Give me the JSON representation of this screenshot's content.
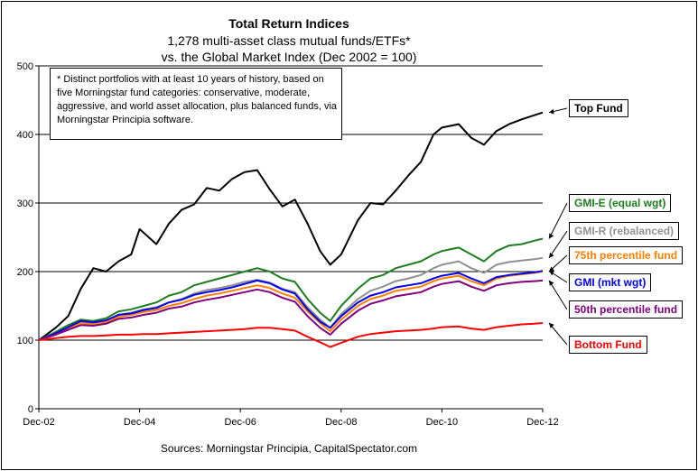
{
  "chart_data": {
    "type": "line",
    "title": "Total Return Indices",
    "subtitle": [
      "1,278 multi-asset class mutual funds/ETFs*",
      "vs. the Global Market Index (Dec 2002 = 100)"
    ],
    "note": "* Distinct portfolios with at least 10 years of history, based on five Morningstar fund categories: conservative, moderate, aggressive, and world asset allocation, plus balanced funds, via Morningstar Principia software.",
    "source": "Sources: Morningstar Principia, CapitalSpectator.com",
    "xlabel": "",
    "ylabel": "",
    "ylim": [
      0,
      500
    ],
    "xlim": [
      2002.917,
      2012.917
    ],
    "y_ticks": [
      0,
      100,
      200,
      300,
      400,
      500
    ],
    "x_ticks": [
      {
        "x": 2002.917,
        "label": "Dec-02"
      },
      {
        "x": 2004.917,
        "label": "Dec-04"
      },
      {
        "x": 2006.917,
        "label": "Dec-06"
      },
      {
        "x": 2008.917,
        "label": "Dec-08"
      },
      {
        "x": 2010.917,
        "label": "Dec-10"
      },
      {
        "x": 2012.917,
        "label": "Dec-12"
      }
    ],
    "grid": "horizontal",
    "legend_placement": "right",
    "series": [
      {
        "name": "Top Fund",
        "color": "#000000",
        "label_color": "#000000",
        "points": [
          [
            2002.917,
            100
          ],
          [
            2003.25,
            118
          ],
          [
            2003.5,
            135
          ],
          [
            2003.75,
            175
          ],
          [
            2004.0,
            205
          ],
          [
            2004.25,
            200
          ],
          [
            2004.5,
            215
          ],
          [
            2004.75,
            225
          ],
          [
            2004.917,
            262
          ],
          [
            2005.25,
            240
          ],
          [
            2005.5,
            270
          ],
          [
            2005.75,
            290
          ],
          [
            2006.0,
            298
          ],
          [
            2006.25,
            322
          ],
          [
            2006.5,
            318
          ],
          [
            2006.75,
            335
          ],
          [
            2007.0,
            345
          ],
          [
            2007.25,
            348
          ],
          [
            2007.5,
            320
          ],
          [
            2007.75,
            295
          ],
          [
            2008.0,
            305
          ],
          [
            2008.25,
            270
          ],
          [
            2008.5,
            230
          ],
          [
            2008.7,
            210
          ],
          [
            2008.917,
            225
          ],
          [
            2009.25,
            275
          ],
          [
            2009.5,
            300
          ],
          [
            2009.75,
            298
          ],
          [
            2010.0,
            318
          ],
          [
            2010.25,
            340
          ],
          [
            2010.5,
            360
          ],
          [
            2010.75,
            400
          ],
          [
            2010.917,
            410
          ],
          [
            2011.25,
            415
          ],
          [
            2011.5,
            395
          ],
          [
            2011.75,
            385
          ],
          [
            2012.0,
            405
          ],
          [
            2012.25,
            415
          ],
          [
            2012.5,
            422
          ],
          [
            2012.75,
            428
          ],
          [
            2012.917,
            432
          ]
        ]
      },
      {
        "name": "GMI-E (equal wgt)",
        "color": "#1e7d1e",
        "label_color": "#1e7d1e",
        "points": [
          [
            2002.917,
            100
          ],
          [
            2003.25,
            112
          ],
          [
            2003.5,
            122
          ],
          [
            2003.75,
            130
          ],
          [
            2004.0,
            128
          ],
          [
            2004.25,
            132
          ],
          [
            2004.5,
            142
          ],
          [
            2004.75,
            145
          ],
          [
            2005.0,
            150
          ],
          [
            2005.25,
            155
          ],
          [
            2005.5,
            165
          ],
          [
            2005.75,
            170
          ],
          [
            2006.0,
            180
          ],
          [
            2006.25,
            185
          ],
          [
            2006.5,
            190
          ],
          [
            2006.75,
            195
          ],
          [
            2007.0,
            200
          ],
          [
            2007.25,
            205
          ],
          [
            2007.5,
            200
          ],
          [
            2007.75,
            190
          ],
          [
            2008.0,
            185
          ],
          [
            2008.25,
            160
          ],
          [
            2008.5,
            140
          ],
          [
            2008.7,
            128
          ],
          [
            2008.917,
            150
          ],
          [
            2009.25,
            175
          ],
          [
            2009.5,
            190
          ],
          [
            2009.75,
            195
          ],
          [
            2010.0,
            205
          ],
          [
            2010.25,
            210
          ],
          [
            2010.5,
            215
          ],
          [
            2010.75,
            225
          ],
          [
            2010.917,
            230
          ],
          [
            2011.25,
            235
          ],
          [
            2011.5,
            225
          ],
          [
            2011.75,
            215
          ],
          [
            2012.0,
            230
          ],
          [
            2012.25,
            238
          ],
          [
            2012.5,
            240
          ],
          [
            2012.75,
            245
          ],
          [
            2012.917,
            248
          ]
        ]
      },
      {
        "name": "GMI-R (rebalanced)",
        "color": "#909090",
        "label_color": "#909090",
        "points": [
          [
            2002.917,
            100
          ],
          [
            2003.25,
            110
          ],
          [
            2003.5,
            118
          ],
          [
            2003.75,
            127
          ],
          [
            2004.0,
            125
          ],
          [
            2004.25,
            128
          ],
          [
            2004.5,
            137
          ],
          [
            2004.75,
            140
          ],
          [
            2005.0,
            145
          ],
          [
            2005.25,
            148
          ],
          [
            2005.5,
            155
          ],
          [
            2005.75,
            160
          ],
          [
            2006.0,
            168
          ],
          [
            2006.25,
            173
          ],
          [
            2006.5,
            176
          ],
          [
            2006.75,
            180
          ],
          [
            2007.0,
            185
          ],
          [
            2007.25,
            188
          ],
          [
            2007.5,
            184
          ],
          [
            2007.75,
            175
          ],
          [
            2008.0,
            170
          ],
          [
            2008.25,
            148
          ],
          [
            2008.5,
            130
          ],
          [
            2008.7,
            118
          ],
          [
            2008.917,
            138
          ],
          [
            2009.25,
            160
          ],
          [
            2009.5,
            172
          ],
          [
            2009.75,
            178
          ],
          [
            2010.0,
            186
          ],
          [
            2010.25,
            190
          ],
          [
            2010.5,
            195
          ],
          [
            2010.75,
            205
          ],
          [
            2010.917,
            210
          ],
          [
            2011.25,
            215
          ],
          [
            2011.5,
            205
          ],
          [
            2011.75,
            198
          ],
          [
            2012.0,
            210
          ],
          [
            2012.25,
            214
          ],
          [
            2012.5,
            216
          ],
          [
            2012.75,
            218
          ],
          [
            2012.917,
            220
          ]
        ]
      },
      {
        "name": "75th percentile fund",
        "color": "#ff7f00",
        "label_color": "#ff7f00",
        "points": [
          [
            2002.917,
            100
          ],
          [
            2003.25,
            109
          ],
          [
            2003.5,
            117
          ],
          [
            2003.75,
            125
          ],
          [
            2004.0,
            123
          ],
          [
            2004.25,
            126
          ],
          [
            2004.5,
            134
          ],
          [
            2004.75,
            137
          ],
          [
            2005.0,
            141
          ],
          [
            2005.25,
            144
          ],
          [
            2005.5,
            150
          ],
          [
            2005.75,
            154
          ],
          [
            2006.0,
            160
          ],
          [
            2006.25,
            165
          ],
          [
            2006.5,
            168
          ],
          [
            2006.75,
            172
          ],
          [
            2007.0,
            176
          ],
          [
            2007.25,
            180
          ],
          [
            2007.5,
            176
          ],
          [
            2007.75,
            168
          ],
          [
            2008.0,
            162
          ],
          [
            2008.25,
            142
          ],
          [
            2008.5,
            125
          ],
          [
            2008.7,
            113
          ],
          [
            2008.917,
            130
          ],
          [
            2009.25,
            150
          ],
          [
            2009.5,
            160
          ],
          [
            2009.75,
            165
          ],
          [
            2010.0,
            172
          ],
          [
            2010.25,
            175
          ],
          [
            2010.5,
            178
          ],
          [
            2010.75,
            186
          ],
          [
            2010.917,
            190
          ],
          [
            2011.25,
            194
          ],
          [
            2011.5,
            186
          ],
          [
            2011.75,
            180
          ],
          [
            2012.0,
            190
          ],
          [
            2012.25,
            194
          ],
          [
            2012.5,
            196
          ],
          [
            2012.75,
            198
          ],
          [
            2012.917,
            200
          ]
        ]
      },
      {
        "name": "GMI (mkt wgt)",
        "color": "#0000ee",
        "label_color": "#0000ee",
        "points": [
          [
            2002.917,
            100
          ],
          [
            2003.25,
            110
          ],
          [
            2003.5,
            119
          ],
          [
            2003.75,
            128
          ],
          [
            2004.0,
            126
          ],
          [
            2004.25,
            129
          ],
          [
            2004.5,
            137
          ],
          [
            2004.75,
            139
          ],
          [
            2005.0,
            144
          ],
          [
            2005.25,
            147
          ],
          [
            2005.5,
            155
          ],
          [
            2005.75,
            159
          ],
          [
            2006.0,
            166
          ],
          [
            2006.25,
            170
          ],
          [
            2006.5,
            173
          ],
          [
            2006.75,
            177
          ],
          [
            2007.0,
            182
          ],
          [
            2007.25,
            187
          ],
          [
            2007.5,
            183
          ],
          [
            2007.75,
            174
          ],
          [
            2008.0,
            168
          ],
          [
            2008.25,
            145
          ],
          [
            2008.5,
            127
          ],
          [
            2008.7,
            118
          ],
          [
            2008.917,
            135
          ],
          [
            2009.25,
            155
          ],
          [
            2009.5,
            165
          ],
          [
            2009.75,
            170
          ],
          [
            2010.0,
            177
          ],
          [
            2010.25,
            180
          ],
          [
            2010.5,
            183
          ],
          [
            2010.75,
            190
          ],
          [
            2010.917,
            194
          ],
          [
            2011.25,
            198
          ],
          [
            2011.5,
            190
          ],
          [
            2011.75,
            183
          ],
          [
            2012.0,
            192
          ],
          [
            2012.25,
            195
          ],
          [
            2012.5,
            197
          ],
          [
            2012.75,
            199
          ],
          [
            2012.917,
            201
          ]
        ]
      },
      {
        "name": "50th percentile fund",
        "color": "#800080",
        "label_color": "#800080",
        "points": [
          [
            2002.917,
            100
          ],
          [
            2003.25,
            108
          ],
          [
            2003.5,
            115
          ],
          [
            2003.75,
            122
          ],
          [
            2004.0,
            121
          ],
          [
            2004.25,
            124
          ],
          [
            2004.5,
            131
          ],
          [
            2004.75,
            133
          ],
          [
            2005.0,
            137
          ],
          [
            2005.25,
            140
          ],
          [
            2005.5,
            146
          ],
          [
            2005.75,
            149
          ],
          [
            2006.0,
            155
          ],
          [
            2006.25,
            159
          ],
          [
            2006.5,
            162
          ],
          [
            2006.75,
            166
          ],
          [
            2007.0,
            170
          ],
          [
            2007.25,
            174
          ],
          [
            2007.5,
            170
          ],
          [
            2007.75,
            162
          ],
          [
            2008.0,
            156
          ],
          [
            2008.25,
            135
          ],
          [
            2008.5,
            118
          ],
          [
            2008.7,
            108
          ],
          [
            2008.917,
            124
          ],
          [
            2009.25,
            143
          ],
          [
            2009.5,
            153
          ],
          [
            2009.75,
            158
          ],
          [
            2010.0,
            164
          ],
          [
            2010.25,
            167
          ],
          [
            2010.5,
            170
          ],
          [
            2010.75,
            178
          ],
          [
            2010.917,
            182
          ],
          [
            2011.25,
            186
          ],
          [
            2011.5,
            178
          ],
          [
            2011.75,
            172
          ],
          [
            2012.0,
            180
          ],
          [
            2012.25,
            183
          ],
          [
            2012.5,
            185
          ],
          [
            2012.75,
            186
          ],
          [
            2012.917,
            187
          ]
        ]
      },
      {
        "name": "Bottom Fund",
        "color": "#ff0000",
        "label_color": "#ff0000",
        "points": [
          [
            2002.917,
            100
          ],
          [
            2003.25,
            103
          ],
          [
            2003.5,
            105
          ],
          [
            2003.75,
            106
          ],
          [
            2004.0,
            106
          ],
          [
            2004.25,
            107
          ],
          [
            2004.5,
            108
          ],
          [
            2004.75,
            108
          ],
          [
            2005.0,
            109
          ],
          [
            2005.25,
            109
          ],
          [
            2005.5,
            110
          ],
          [
            2005.75,
            111
          ],
          [
            2006.0,
            112
          ],
          [
            2006.25,
            113
          ],
          [
            2006.5,
            114
          ],
          [
            2006.75,
            115
          ],
          [
            2007.0,
            116
          ],
          [
            2007.25,
            118
          ],
          [
            2007.5,
            118
          ],
          [
            2007.75,
            116
          ],
          [
            2008.0,
            114
          ],
          [
            2008.25,
            105
          ],
          [
            2008.5,
            97
          ],
          [
            2008.7,
            90
          ],
          [
            2008.917,
            96
          ],
          [
            2009.25,
            105
          ],
          [
            2009.5,
            109
          ],
          [
            2009.75,
            111
          ],
          [
            2010.0,
            113
          ],
          [
            2010.25,
            114
          ],
          [
            2010.5,
            115
          ],
          [
            2010.75,
            117
          ],
          [
            2010.917,
            119
          ],
          [
            2011.25,
            120
          ],
          [
            2011.5,
            117
          ],
          [
            2011.75,
            115
          ],
          [
            2012.0,
            119
          ],
          [
            2012.25,
            121
          ],
          [
            2012.5,
            123
          ],
          [
            2012.75,
            124
          ],
          [
            2012.917,
            125
          ]
        ]
      }
    ]
  }
}
